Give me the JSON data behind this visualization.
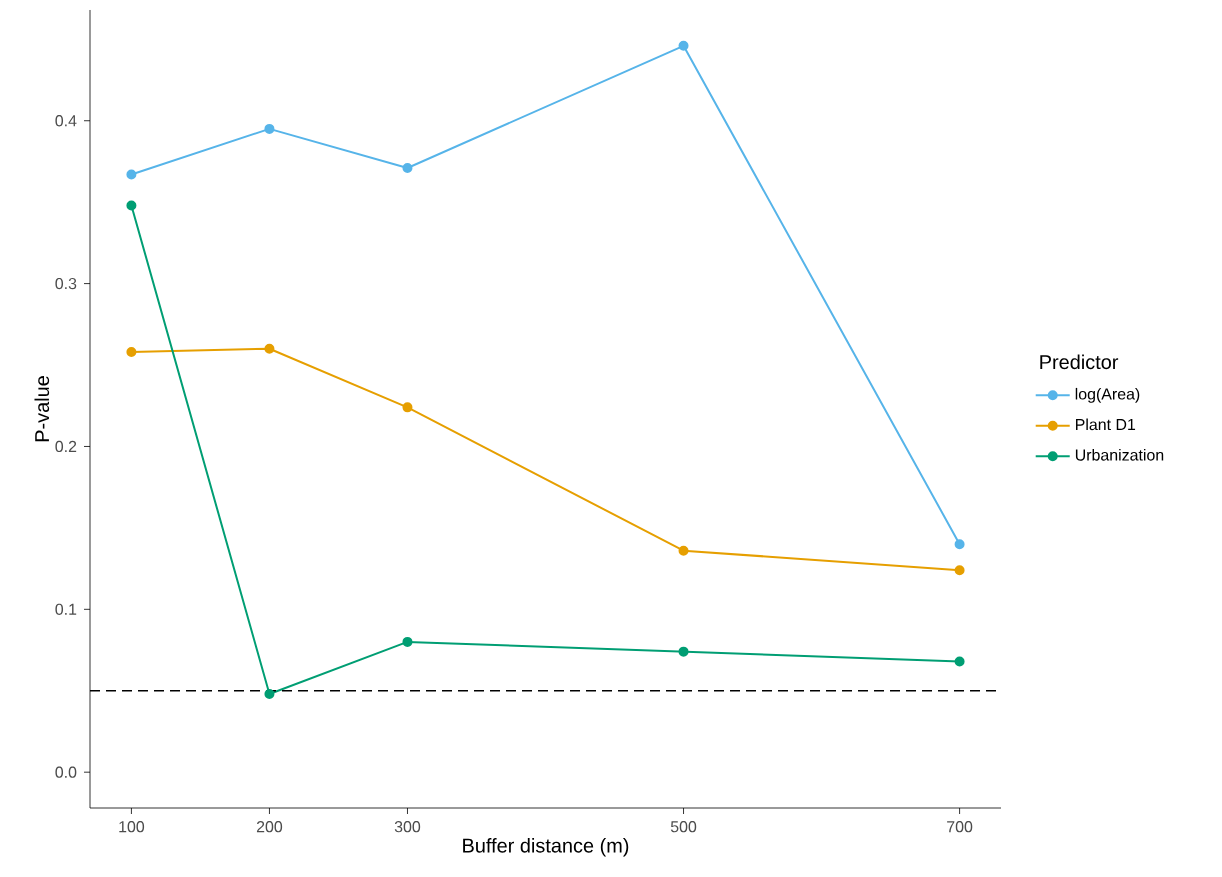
{
  "chart_data": {
    "type": "line",
    "xlabel": "Buffer distance (m)",
    "ylabel": "P-value",
    "legend_title": "Predictor",
    "x": [
      100,
      200,
      300,
      500,
      700
    ],
    "series": [
      {
        "name": "log(Area)",
        "color": "#56b4e9",
        "values": [
          0.367,
          0.395,
          0.371,
          0.446,
          0.14
        ]
      },
      {
        "name": "Plant D1",
        "color": "#e69f00",
        "values": [
          0.258,
          0.26,
          0.224,
          0.136,
          0.124
        ]
      },
      {
        "name": "Urbanization",
        "color": "#009e73",
        "values": [
          0.348,
          0.048,
          0.08,
          0.074,
          0.068
        ]
      }
    ],
    "xlim": [
      70,
      730
    ],
    "ylim": [
      -0.022,
      0.468
    ],
    "xticks": [
      100,
      200,
      300,
      500,
      700
    ],
    "yticks": [
      {
        "value": 0,
        "label": "0.0"
      },
      0.1,
      0.2,
      0.3,
      0.4
    ],
    "ref_lines": [
      {
        "axis": "y",
        "value": 0.05,
        "line_style": "dashed",
        "color": "#000000"
      }
    ],
    "grid": false,
    "legend": "right",
    "marker": "circle",
    "line_style": "solid"
  }
}
